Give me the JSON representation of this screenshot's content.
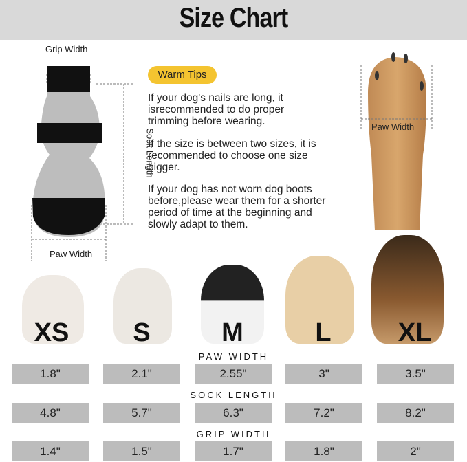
{
  "title": "Size Chart",
  "diagram": {
    "grip_width": "Grip Width",
    "sock_length": "Sock Length",
    "paw_width": "Paw Width",
    "paw_photo_label": "Paw Width"
  },
  "tips": {
    "badge": "Warm Tips",
    "paragraphs": [
      "If your dog's nails are long, it isrecommended to do proper trimming before wearing.",
      "If the size is between two sizes, it is recommended to choose one size bigger.",
      "If your dog has not worn dog boots before,please wear them for a shorter period of time at the beginning and slowly adapt to them."
    ]
  },
  "sizes": [
    "XS",
    "S",
    "M",
    "L",
    "XL"
  ],
  "table": [
    {
      "label": "PAW WIDTH",
      "values": [
        "1.8\"",
        "2.1\"",
        "2.55\"",
        "3\"",
        "3.5\""
      ]
    },
    {
      "label": "SOCK LENGTH",
      "values": [
        "4.8\"",
        "5.7\"",
        "6.3\"",
        "7.2\"",
        "8.2\""
      ]
    },
    {
      "label": "GRIP WIDTH",
      "values": [
        "1.4\"",
        "1.5\"",
        "1.7\"",
        "1.8\"",
        "2\""
      ]
    }
  ],
  "colors": {
    "header_bg": "#d9d9d9",
    "badge": "#f4c430",
    "cell_bg": "#bcbcbc"
  }
}
